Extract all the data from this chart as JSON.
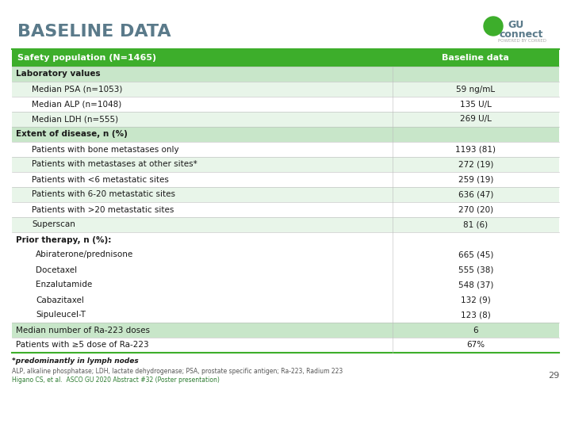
{
  "title": "BASELINE DATA",
  "title_color": "#5a7a8a",
  "bg_color": "#ffffff",
  "header_bg": "#3dae2b",
  "header_text_color": "#ffffff",
  "header_left": "Safety population (N=1465)",
  "header_right": "Baseline data",
  "section_bg": "#c8e6c9",
  "alt_row_bg": "#e8f5e9",
  "white_row_bg": "#ffffff",
  "col_split": 0.695,
  "rows": [
    {
      "label": "Laboratory values",
      "value": "",
      "indent": 0,
      "type": "section",
      "bold_label": true
    },
    {
      "label": "Median PSA (n=1053)",
      "value": "59 ng/mL",
      "indent": 2,
      "type": "alt",
      "bold_label": false
    },
    {
      "label": "Median ALP (n=1048)",
      "value": "135 U/L",
      "indent": 2,
      "type": "white",
      "bold_label": false
    },
    {
      "label": "Median LDH (n=555)",
      "value": "269 U/L",
      "indent": 2,
      "type": "alt",
      "bold_label": false
    },
    {
      "label": "Extent of disease, n (%)",
      "value": "",
      "indent": 0,
      "type": "section",
      "bold_label": true
    },
    {
      "label": "Patients with bone metastases only",
      "value": "1193 (81)",
      "indent": 2,
      "type": "white",
      "bold_label": false
    },
    {
      "label": "Patients with metastases at other sites*",
      "value": "272 (19)",
      "indent": 2,
      "type": "alt",
      "bold_label": false
    },
    {
      "label": "Patients with <6 metastatic sites",
      "value": "259 (19)",
      "indent": 2,
      "type": "white",
      "bold_label": false
    },
    {
      "label": "Patients with 6-20 metastatic sites",
      "value": "636 (47)",
      "indent": 2,
      "type": "alt",
      "bold_label": false
    },
    {
      "label": "Patients with >20 metastatic sites",
      "value": "270 (20)",
      "indent": 2,
      "type": "white",
      "bold_label": false
    },
    {
      "label": "Superscan",
      "value": "81 (6)",
      "indent": 2,
      "type": "alt",
      "bold_label": false
    }
  ],
  "prior_therapy": {
    "header": "Prior therapy, n (%):",
    "items": [
      "Abiraterone/prednisone",
      "Docetaxel",
      "Enzalutamide",
      "Cabazitaxel",
      "Sipuleucel-T"
    ],
    "values": [
      "665 (45)",
      "555 (38)",
      "548 (37)",
      "132 (9)",
      "123 (8)"
    ],
    "type": "white"
  },
  "bottom_rows": [
    {
      "label": "Median number of Ra-223 doses",
      "value": "6",
      "indent": 0,
      "type": "section",
      "bold_label": false
    },
    {
      "label": "Patients with ≥5 dose of Ra-223",
      "value": "67%",
      "indent": 0,
      "type": "white",
      "bold_label": false
    }
  ],
  "footnote1": "*predominantly in lymph nodes",
  "footnote2": "ALP, alkaline phosphatase; LDH, lactate dehydrogenase; PSA, prostate specific antigen; Ra-223, Radium 223",
  "footnote3": "Higano CS, et al.  ASCO GU 2020 Abstract #32 (Poster presentation)",
  "page_num": "29",
  "border_color": "#3dae2b",
  "divider_color": "#bbbbbb"
}
